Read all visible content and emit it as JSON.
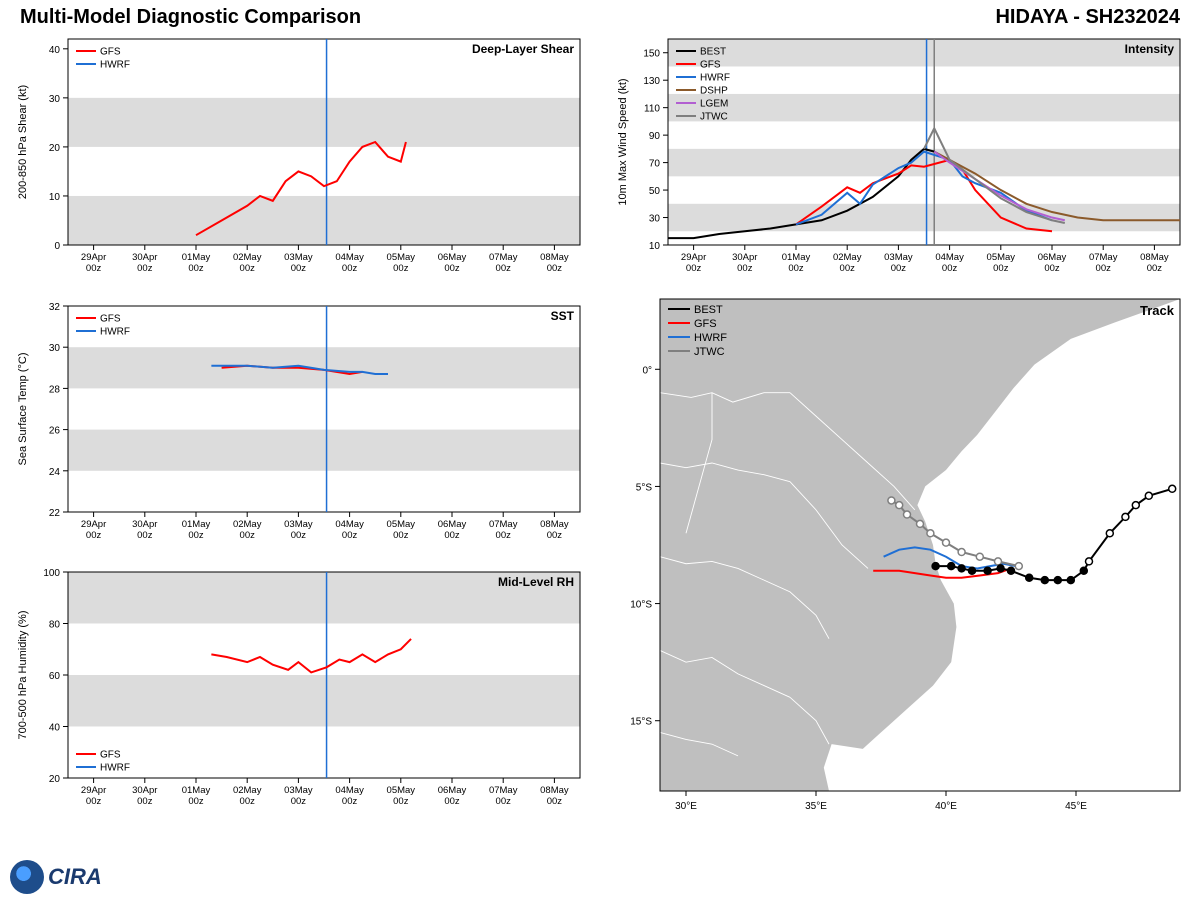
{
  "header": {
    "left": "Multi-Model Diagnostic Comparison",
    "right": "HIDAYA - SH232024"
  },
  "logo_text": "CIRA",
  "xaxis": {
    "ticks": [
      "29Apr\n00z",
      "30Apr\n00z",
      "01May\n00z",
      "02May\n00z",
      "03May\n00z",
      "04May\n00z",
      "05May\n00z",
      "06May\n00z",
      "07May\n00z",
      "08May\n00z"
    ],
    "ref_line": 4.55,
    "ref_line2": 4.7
  },
  "panels": {
    "intensity": {
      "title": "Intensity",
      "ylabel": "10m Max Wind Speed (kt)",
      "ylim": [
        10,
        160
      ],
      "ytick_step": 20,
      "bands": [
        [
          20,
          40
        ],
        [
          60,
          80
        ],
        [
          100,
          120
        ],
        [
          140,
          160
        ]
      ],
      "band_color": "#dcdcdc",
      "legend": [
        {
          "label": "BEST",
          "color": "#000000",
          "w": 2
        },
        {
          "label": "GFS",
          "color": "#ff0000",
          "w": 2
        },
        {
          "label": "HWRF",
          "color": "#1f6fd4",
          "w": 2
        },
        {
          "label": "DSHP",
          "color": "#8b5a2b",
          "w": 2
        },
        {
          "label": "LGEM",
          "color": "#b25fd1",
          "w": 2
        },
        {
          "label": "JTWC",
          "color": "#7f7f7f",
          "w": 2
        }
      ],
      "series": {
        "BEST": {
          "color": "#000000",
          "w": 2,
          "pts": [
            [
              -0.5,
              15
            ],
            [
              0,
              15
            ],
            [
              0.5,
              18
            ],
            [
              1,
              20
            ],
            [
              1.5,
              22
            ],
            [
              2,
              25
            ],
            [
              2.5,
              28
            ],
            [
              3,
              35
            ],
            [
              3.5,
              45
            ],
            [
              4,
              60
            ],
            [
              4.25,
              72
            ],
            [
              4.5,
              80
            ],
            [
              4.7,
              78
            ]
          ]
        },
        "GFS": {
          "color": "#ff0000",
          "w": 2,
          "pts": [
            [
              2,
              25
            ],
            [
              2.5,
              38
            ],
            [
              3,
              52
            ],
            [
              3.25,
              48
            ],
            [
              3.5,
              55
            ],
            [
              4,
              62
            ],
            [
              4.25,
              68
            ],
            [
              4.5,
              67
            ],
            [
              5,
              72
            ],
            [
              5.25,
              65
            ],
            [
              5.5,
              50
            ],
            [
              6,
              30
            ],
            [
              6.5,
              22
            ],
            [
              7,
              20
            ]
          ]
        },
        "HWRF": {
          "color": "#1f6fd4",
          "w": 2,
          "pts": [
            [
              2,
              25
            ],
            [
              2.5,
              32
            ],
            [
              3,
              48
            ],
            [
              3.25,
              40
            ],
            [
              3.5,
              54
            ],
            [
              4,
              66
            ],
            [
              4.25,
              70
            ],
            [
              4.5,
              78
            ],
            [
              5,
              72
            ],
            [
              5.25,
              60
            ],
            [
              5.5,
              55
            ],
            [
              6,
              48
            ],
            [
              6.5,
              35
            ],
            [
              7,
              28
            ]
          ]
        },
        "DSHP": {
          "color": "#8b5a2b",
          "w": 2,
          "pts": [
            [
              4.7,
              78
            ],
            [
              5,
              72
            ],
            [
              5.5,
              62
            ],
            [
              6,
              50
            ],
            [
              6.5,
              40
            ],
            [
              7,
              34
            ],
            [
              7.5,
              30
            ],
            [
              8,
              28
            ],
            [
              8.5,
              28
            ],
            [
              9,
              28
            ],
            [
              9.5,
              28
            ]
          ]
        },
        "LGEM": {
          "color": "#b25fd1",
          "w": 2,
          "pts": [
            [
              4.7,
              78
            ],
            [
              5,
              70
            ],
            [
              5.5,
              58
            ],
            [
              6,
              46
            ],
            [
              6.5,
              36
            ],
            [
              7,
              30
            ],
            [
              7.25,
              28
            ]
          ]
        },
        "JTWC": {
          "color": "#7f7f7f",
          "w": 2,
          "pts": [
            [
              4.5,
              80
            ],
            [
              4.7,
              95
            ],
            [
              5,
              72
            ],
            [
              5.5,
              58
            ],
            [
              6,
              44
            ],
            [
              6.5,
              34
            ],
            [
              7,
              28
            ],
            [
              7.25,
              26
            ]
          ]
        }
      },
      "label_fontsize": 11
    },
    "shear": {
      "title": "Deep-Layer Shear",
      "ylabel": "200-850 hPa Shear (kt)",
      "ylim": [
        0,
        42
      ],
      "ytick_step": 10,
      "ytick_max": 40,
      "bands": [
        [
          0,
          10
        ],
        [
          20,
          30
        ]
      ],
      "band_color": "#dcdcdc",
      "legend": [
        {
          "label": "GFS",
          "color": "#ff0000",
          "w": 2
        },
        {
          "label": "HWRF",
          "color": "#1f6fd4",
          "w": 2
        }
      ],
      "series": {
        "GFS": {
          "color": "#ff0000",
          "w": 2,
          "pts": [
            [
              2,
              2
            ],
            [
              2.5,
              5
            ],
            [
              3,
              8
            ],
            [
              3.25,
              10
            ],
            [
              3.5,
              9
            ],
            [
              3.75,
              13
            ],
            [
              4,
              15
            ],
            [
              4.25,
              14
            ],
            [
              4.5,
              12
            ],
            [
              4.75,
              13
            ],
            [
              5,
              17
            ],
            [
              5.25,
              20
            ],
            [
              5.5,
              21
            ],
            [
              5.75,
              18
            ],
            [
              6,
              17
            ],
            [
              6.1,
              21
            ]
          ]
        }
      },
      "label_fontsize": 11
    },
    "sst": {
      "title": "SST",
      "ylabel": "Sea Surface Temp (°C)",
      "ylim": [
        22,
        32
      ],
      "ytick_step": 2,
      "bands": [
        [
          24,
          26
        ],
        [
          28,
          30
        ]
      ],
      "band_color": "#dcdcdc",
      "legend": [
        {
          "label": "GFS",
          "color": "#ff0000",
          "w": 2
        },
        {
          "label": "HWRF",
          "color": "#1f6fd4",
          "w": 2
        }
      ],
      "series": {
        "GFS": {
          "color": "#ff0000",
          "w": 2,
          "pts": [
            [
              2.5,
              29.0
            ],
            [
              3,
              29.1
            ],
            [
              3.5,
              29.0
            ],
            [
              4,
              29.0
            ],
            [
              4.5,
              28.9
            ],
            [
              5,
              28.7
            ],
            [
              5.25,
              28.8
            ]
          ]
        },
        "HWRF": {
          "color": "#1f6fd4",
          "w": 2,
          "pts": [
            [
              2.3,
              29.1
            ],
            [
              3,
              29.1
            ],
            [
              3.5,
              29.0
            ],
            [
              4,
              29.1
            ],
            [
              4.5,
              28.9
            ],
            [
              5,
              28.8
            ],
            [
              5.25,
              28.8
            ],
            [
              5.5,
              28.7
            ],
            [
              5.75,
              28.7
            ]
          ]
        }
      },
      "label_fontsize": 11
    },
    "rh": {
      "title": "Mid-Level RH",
      "ylabel": "700-500 hPa Humidity (%)",
      "ylim": [
        20,
        100
      ],
      "ytick_step": 20,
      "bands": [
        [
          40,
          60
        ],
        [
          80,
          100
        ]
      ],
      "band_color": "#dcdcdc",
      "legend_pos": "bl",
      "legend": [
        {
          "label": "GFS",
          "color": "#ff0000",
          "w": 2
        },
        {
          "label": "HWRF",
          "color": "#1f6fd4",
          "w": 2
        }
      ],
      "series": {
        "GFS": {
          "color": "#ff0000",
          "w": 2,
          "pts": [
            [
              2.3,
              68
            ],
            [
              2.6,
              67
            ],
            [
              3,
              65
            ],
            [
              3.25,
              67
            ],
            [
              3.5,
              64
            ],
            [
              3.8,
              62
            ],
            [
              4,
              65
            ],
            [
              4.25,
              61
            ],
            [
              4.55,
              63
            ],
            [
              4.8,
              66
            ],
            [
              5,
              65
            ],
            [
              5.25,
              68
            ],
            [
              5.5,
              65
            ],
            [
              5.75,
              68
            ],
            [
              6,
              70
            ],
            [
              6.2,
              74
            ]
          ]
        }
      },
      "label_fontsize": 11
    },
    "track": {
      "title": "Track",
      "xlabel": "",
      "ylabel": "",
      "xlim": [
        29,
        49
      ],
      "xtick_step": 5,
      "xtick_suffix": "°E",
      "ylim": [
        -18,
        3
      ],
      "ytick_step": 5,
      "ytick_fmt": "lat",
      "land_color": "#bfbfbf",
      "ocean_color": "#ffffff",
      "border_color": "#ffffff",
      "legend": [
        {
          "label": "BEST",
          "color": "#000000",
          "w": 2
        },
        {
          "label": "GFS",
          "color": "#ff0000",
          "w": 2
        },
        {
          "label": "HWRF",
          "color": "#1f6fd4",
          "w": 2
        },
        {
          "label": "JTWC",
          "color": "#7f7f7f",
          "w": 2
        }
      ],
      "best_pts": [
        [
          48.7,
          -5.1
        ],
        [
          47.8,
          -5.4
        ],
        [
          47.3,
          -5.8
        ],
        [
          46.9,
          -6.3
        ],
        [
          46.3,
          -7.0
        ],
        [
          45.5,
          -8.2
        ],
        [
          45.3,
          -8.6
        ],
        [
          44.8,
          -9.0
        ],
        [
          44.3,
          -9.0
        ],
        [
          43.8,
          -9.0
        ],
        [
          43.2,
          -8.9
        ],
        [
          42.5,
          -8.6
        ],
        [
          42.1,
          -8.5
        ],
        [
          41.6,
          -8.6
        ],
        [
          41.0,
          -8.6
        ],
        [
          40.6,
          -8.5
        ],
        [
          40.2,
          -8.4
        ],
        [
          39.6,
          -8.4
        ]
      ],
      "best_filled_from": 6,
      "gfs_pts": [
        [
          42.5,
          -8.5
        ],
        [
          42.0,
          -8.7
        ],
        [
          41.3,
          -8.8
        ],
        [
          40.6,
          -8.9
        ],
        [
          40.0,
          -8.9
        ],
        [
          39.4,
          -8.8
        ],
        [
          38.8,
          -8.7
        ],
        [
          38.2,
          -8.6
        ],
        [
          37.6,
          -8.6
        ],
        [
          37.2,
          -8.6
        ]
      ],
      "hwrf_pts": [
        [
          42.7,
          -8.4
        ],
        [
          42.2,
          -8.3
        ],
        [
          41.7,
          -8.4
        ],
        [
          41.2,
          -8.5
        ],
        [
          40.6,
          -8.4
        ],
        [
          40.0,
          -8.0
        ],
        [
          39.4,
          -7.7
        ],
        [
          38.8,
          -7.6
        ],
        [
          38.2,
          -7.7
        ],
        [
          37.6,
          -8.0
        ]
      ],
      "jtwc_pts": [
        [
          42.8,
          -8.4
        ],
        [
          42.0,
          -8.2
        ],
        [
          41.3,
          -8.0
        ],
        [
          40.6,
          -7.8
        ],
        [
          40.0,
          -7.4
        ],
        [
          39.4,
          -7.0
        ],
        [
          39.0,
          -6.6
        ],
        [
          38.5,
          -6.2
        ],
        [
          38.2,
          -5.8
        ],
        [
          37.9,
          -5.6
        ]
      ],
      "label_fontsize": 11
    }
  },
  "colors": {
    "axis": "#000000",
    "tick_fontsize": 10,
    "grid": "#dcdcdc"
  }
}
